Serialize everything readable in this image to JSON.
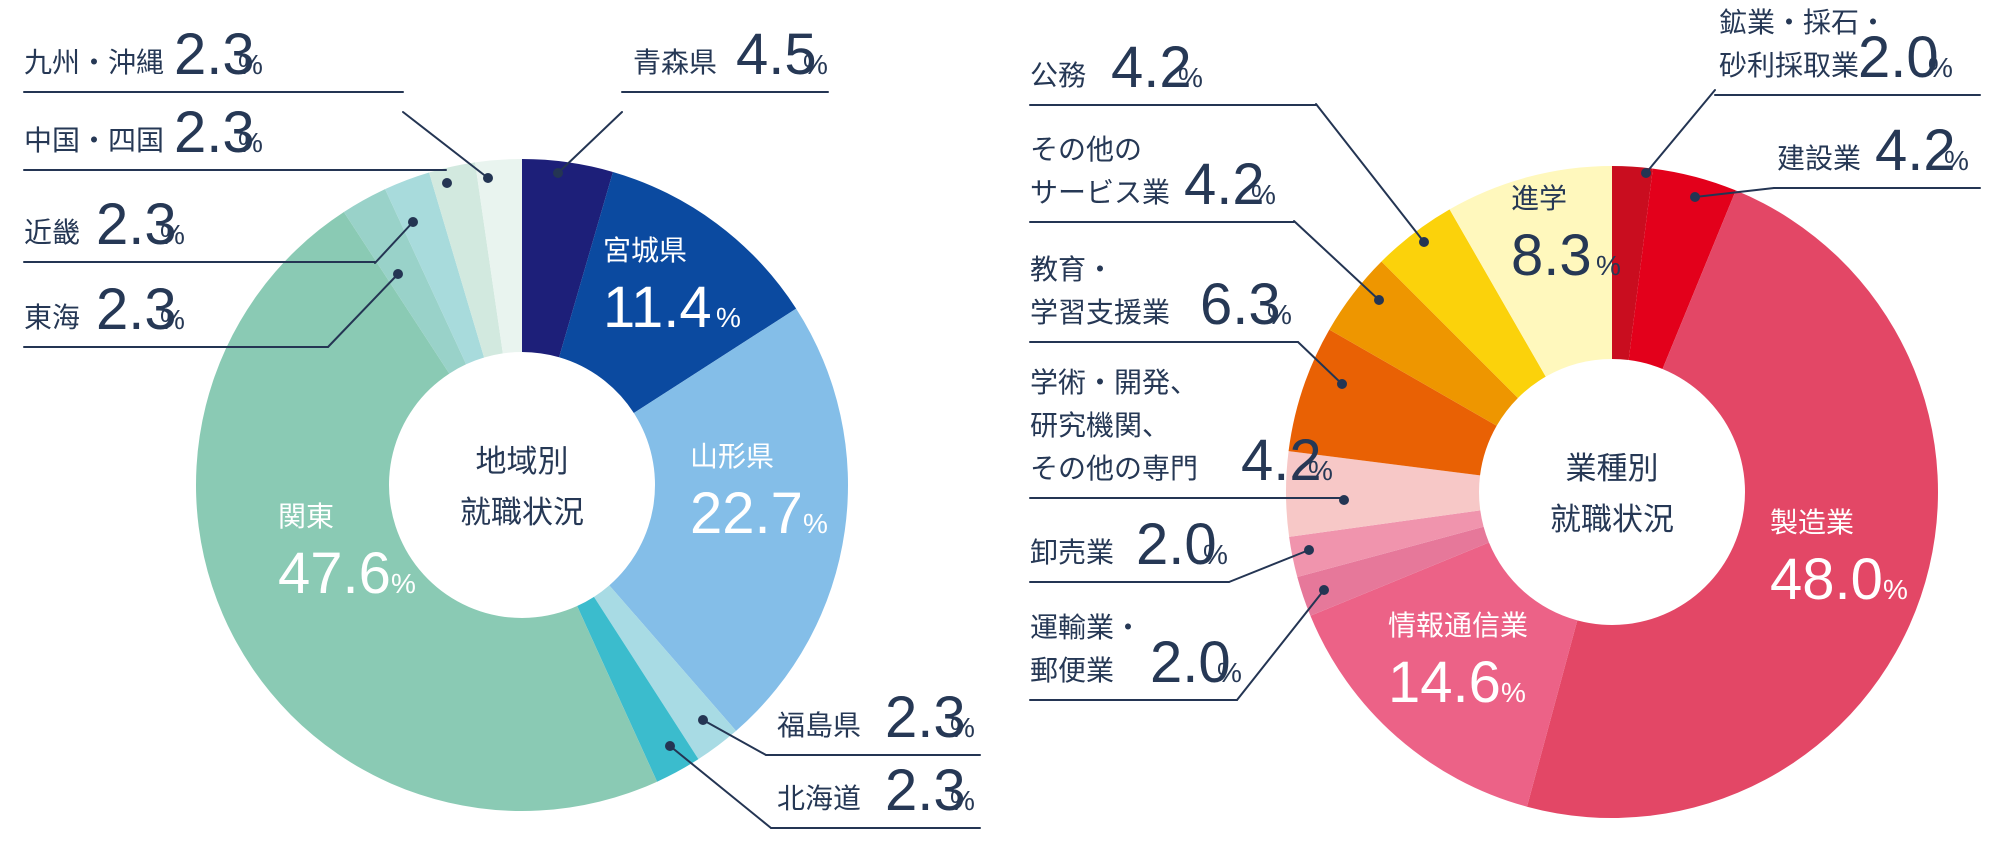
{
  "chart_data": [
    {
      "type": "pie",
      "center_title": [
        "地域別",
        "就職状況"
      ],
      "unit": "%",
      "slices": [
        {
          "name": "青森県",
          "value": 4.5,
          "color": "#1d1f79",
          "label_position": "outside-right"
        },
        {
          "name": "宮城県",
          "value": 11.4,
          "color": "#0b4aa0",
          "label_position": "inside"
        },
        {
          "name": "山形県",
          "value": 22.7,
          "color": "#84bee8",
          "label_position": "inside"
        },
        {
          "name": "福島県",
          "value": 2.3,
          "color": "#a8dbe4",
          "label_position": "outside-right"
        },
        {
          "name": "北海道",
          "value": 2.3,
          "color": "#3bbccd",
          "label_position": "outside-right"
        },
        {
          "name": "関東",
          "value": 47.6,
          "color": "#8acab4",
          "label_position": "inside"
        },
        {
          "name": "東海",
          "value": 2.3,
          "color": "#99d2c9",
          "label_position": "outside-left"
        },
        {
          "name": "近畿",
          "value": 2.3,
          "color": "#a8dbdc",
          "label_position": "outside-left"
        },
        {
          "name": "中国・四国",
          "value": 2.3,
          "color": "#d2e9df",
          "label_position": "outside-left"
        },
        {
          "name": "九州・沖縄",
          "value": 2.3,
          "color": "#e9f4ef",
          "label_position": "outside-left"
        }
      ]
    },
    {
      "type": "pie",
      "center_title": [
        "業種別",
        "就職状況"
      ],
      "unit": "%",
      "slices": [
        {
          "name": "鉱業・採石・砂利採取業",
          "lines": [
            "鉱業・採石・",
            "砂利採取業"
          ],
          "value": 2.0,
          "color": "#c90d1f",
          "label_position": "outside-right"
        },
        {
          "name": "建設業",
          "value": 4.2,
          "color": "#e3001b",
          "label_position": "outside-right"
        },
        {
          "name": "製造業",
          "value": 48.0,
          "color": "#e34766",
          "label_position": "inside"
        },
        {
          "name": "情報通信業",
          "value": 14.6,
          "color": "#ec6287",
          "label_position": "inside"
        },
        {
          "name": "運輸業・郵便業",
          "lines": [
            "運輸業・",
            "郵便業"
          ],
          "value": 2.0,
          "color": "#e6789a",
          "label_position": "outside-left"
        },
        {
          "name": "卸売業",
          "value": 2.0,
          "color": "#f094ad",
          "label_position": "outside-left"
        },
        {
          "name": "学術・開発、研究機関、その他の専門",
          "lines": [
            "学術・開発、",
            "研究機関、",
            "その他の専門"
          ],
          "value": 4.2,
          "color": "#f7c8c7",
          "label_position": "outside-left"
        },
        {
          "name": "教育・学習支援業",
          "lines": [
            "教育・",
            "学習支援業"
          ],
          "value": 6.3,
          "color": "#e96104",
          "label_position": "outside-left"
        },
        {
          "name": "その他のサービス業",
          "lines": [
            "その他の",
            "サービス業"
          ],
          "value": 4.2,
          "color": "#ee9600",
          "label_position": "outside-left"
        },
        {
          "name": "公務",
          "value": 4.2,
          "color": "#fbd20b",
          "label_position": "outside-left"
        },
        {
          "name": "進学",
          "value": 8.3,
          "color": "#fff8bd",
          "label_position": "inside-dark"
        }
      ]
    }
  ]
}
